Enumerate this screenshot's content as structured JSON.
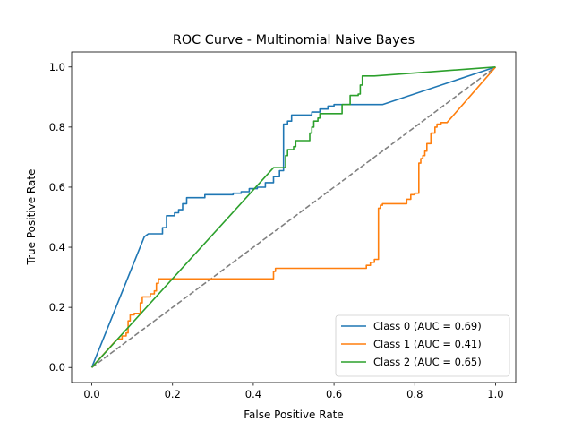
{
  "chart_data": {
    "type": "line",
    "title": "ROC Curve - Multinomial Naive Bayes",
    "xlabel": "False Positive Rate",
    "ylabel": "True Positive Rate",
    "xlim": [
      -0.05,
      1.05
    ],
    "ylim": [
      -0.05,
      1.05
    ],
    "xticks": [
      "0.0",
      "0.2",
      "0.4",
      "0.6",
      "0.8",
      "1.0"
    ],
    "yticks": [
      "0.0",
      "0.2",
      "0.4",
      "0.6",
      "0.8",
      "1.0"
    ],
    "grid": false,
    "legend_position": "lower-right",
    "series": [
      {
        "name": "Class 0 (AUC = 0.69)",
        "color": "#1f77b4",
        "x": [
          0.0,
          0.13,
          0.14,
          0.175,
          0.175,
          0.185,
          0.185,
          0.205,
          0.205,
          0.215,
          0.215,
          0.225,
          0.225,
          0.235,
          0.235,
          0.28,
          0.28,
          0.35,
          0.35,
          0.37,
          0.37,
          0.39,
          0.39,
          0.41,
          0.41,
          0.43,
          0.43,
          0.45,
          0.45,
          0.465,
          0.465,
          0.475,
          0.475,
          0.485,
          0.485,
          0.495,
          0.495,
          0.505,
          0.505,
          0.545,
          0.545,
          0.565,
          0.565,
          0.585,
          0.585,
          0.6,
          0.6,
          0.72,
          1.0
        ],
        "y": [
          0.0,
          0.435,
          0.445,
          0.445,
          0.465,
          0.465,
          0.505,
          0.505,
          0.515,
          0.515,
          0.525,
          0.525,
          0.545,
          0.545,
          0.565,
          0.565,
          0.575,
          0.575,
          0.58,
          0.58,
          0.585,
          0.585,
          0.595,
          0.595,
          0.6,
          0.6,
          0.615,
          0.615,
          0.635,
          0.635,
          0.655,
          0.655,
          0.81,
          0.81,
          0.82,
          0.82,
          0.84,
          0.84,
          0.84,
          0.84,
          0.85,
          0.85,
          0.86,
          0.86,
          0.87,
          0.87,
          0.875,
          0.875,
          1.0
        ]
      },
      {
        "name": "Class 1 (AUC = 0.41)",
        "color": "#ff7f0e",
        "x": [
          0.0,
          0.06,
          0.065,
          0.075,
          0.075,
          0.085,
          0.085,
          0.09,
          0.09,
          0.095,
          0.095,
          0.105,
          0.105,
          0.12,
          0.12,
          0.125,
          0.125,
          0.145,
          0.145,
          0.155,
          0.155,
          0.16,
          0.16,
          0.165,
          0.165,
          0.45,
          0.45,
          0.455,
          0.455,
          0.68,
          0.68,
          0.69,
          0.69,
          0.7,
          0.7,
          0.71,
          0.71,
          0.715,
          0.715,
          0.72,
          0.72,
          0.78,
          0.78,
          0.79,
          0.79,
          0.8,
          0.8,
          0.81,
          0.81,
          0.815,
          0.815,
          0.82,
          0.82,
          0.825,
          0.825,
          0.83,
          0.83,
          0.84,
          0.84,
          0.85,
          0.85,
          0.855,
          0.855,
          0.865,
          0.865,
          0.87,
          0.87,
          0.88,
          1.0
        ],
        "y": [
          0.0,
          0.09,
          0.095,
          0.095,
          0.105,
          0.105,
          0.115,
          0.115,
          0.155,
          0.155,
          0.175,
          0.175,
          0.18,
          0.18,
          0.215,
          0.215,
          0.235,
          0.235,
          0.245,
          0.245,
          0.255,
          0.255,
          0.28,
          0.28,
          0.295,
          0.295,
          0.32,
          0.32,
          0.33,
          0.33,
          0.34,
          0.34,
          0.35,
          0.35,
          0.36,
          0.36,
          0.53,
          0.53,
          0.54,
          0.54,
          0.545,
          0.545,
          0.56,
          0.56,
          0.575,
          0.575,
          0.58,
          0.58,
          0.68,
          0.68,
          0.695,
          0.695,
          0.705,
          0.705,
          0.72,
          0.72,
          0.745,
          0.745,
          0.78,
          0.78,
          0.8,
          0.8,
          0.81,
          0.81,
          0.815,
          0.815,
          0.815,
          0.815,
          1.0
        ]
      },
      {
        "name": "Class 2 (AUC = 0.65)",
        "color": "#2ca02c",
        "x": [
          0.0,
          0.45,
          0.45,
          0.48,
          0.48,
          0.485,
          0.485,
          0.49,
          0.49,
          0.5,
          0.5,
          0.505,
          0.505,
          0.54,
          0.54,
          0.545,
          0.545,
          0.55,
          0.55,
          0.56,
          0.56,
          0.565,
          0.565,
          0.58,
          0.58,
          0.62,
          0.62,
          0.64,
          0.64,
          0.66,
          0.66,
          0.665,
          0.665,
          0.67,
          0.67,
          0.7,
          1.0
        ],
        "y": [
          0.0,
          0.665,
          0.665,
          0.665,
          0.705,
          0.705,
          0.725,
          0.725,
          0.725,
          0.725,
          0.735,
          0.735,
          0.755,
          0.755,
          0.78,
          0.78,
          0.8,
          0.8,
          0.82,
          0.82,
          0.83,
          0.83,
          0.845,
          0.845,
          0.845,
          0.845,
          0.875,
          0.875,
          0.905,
          0.905,
          0.91,
          0.91,
          0.94,
          0.94,
          0.97,
          0.97,
          1.0
        ]
      }
    ],
    "reference_line": {
      "x": [
        0,
        1
      ],
      "y": [
        0,
        1
      ],
      "color": "#808080",
      "style": "dashed"
    },
    "legend_border_color": "#cccccc"
  }
}
